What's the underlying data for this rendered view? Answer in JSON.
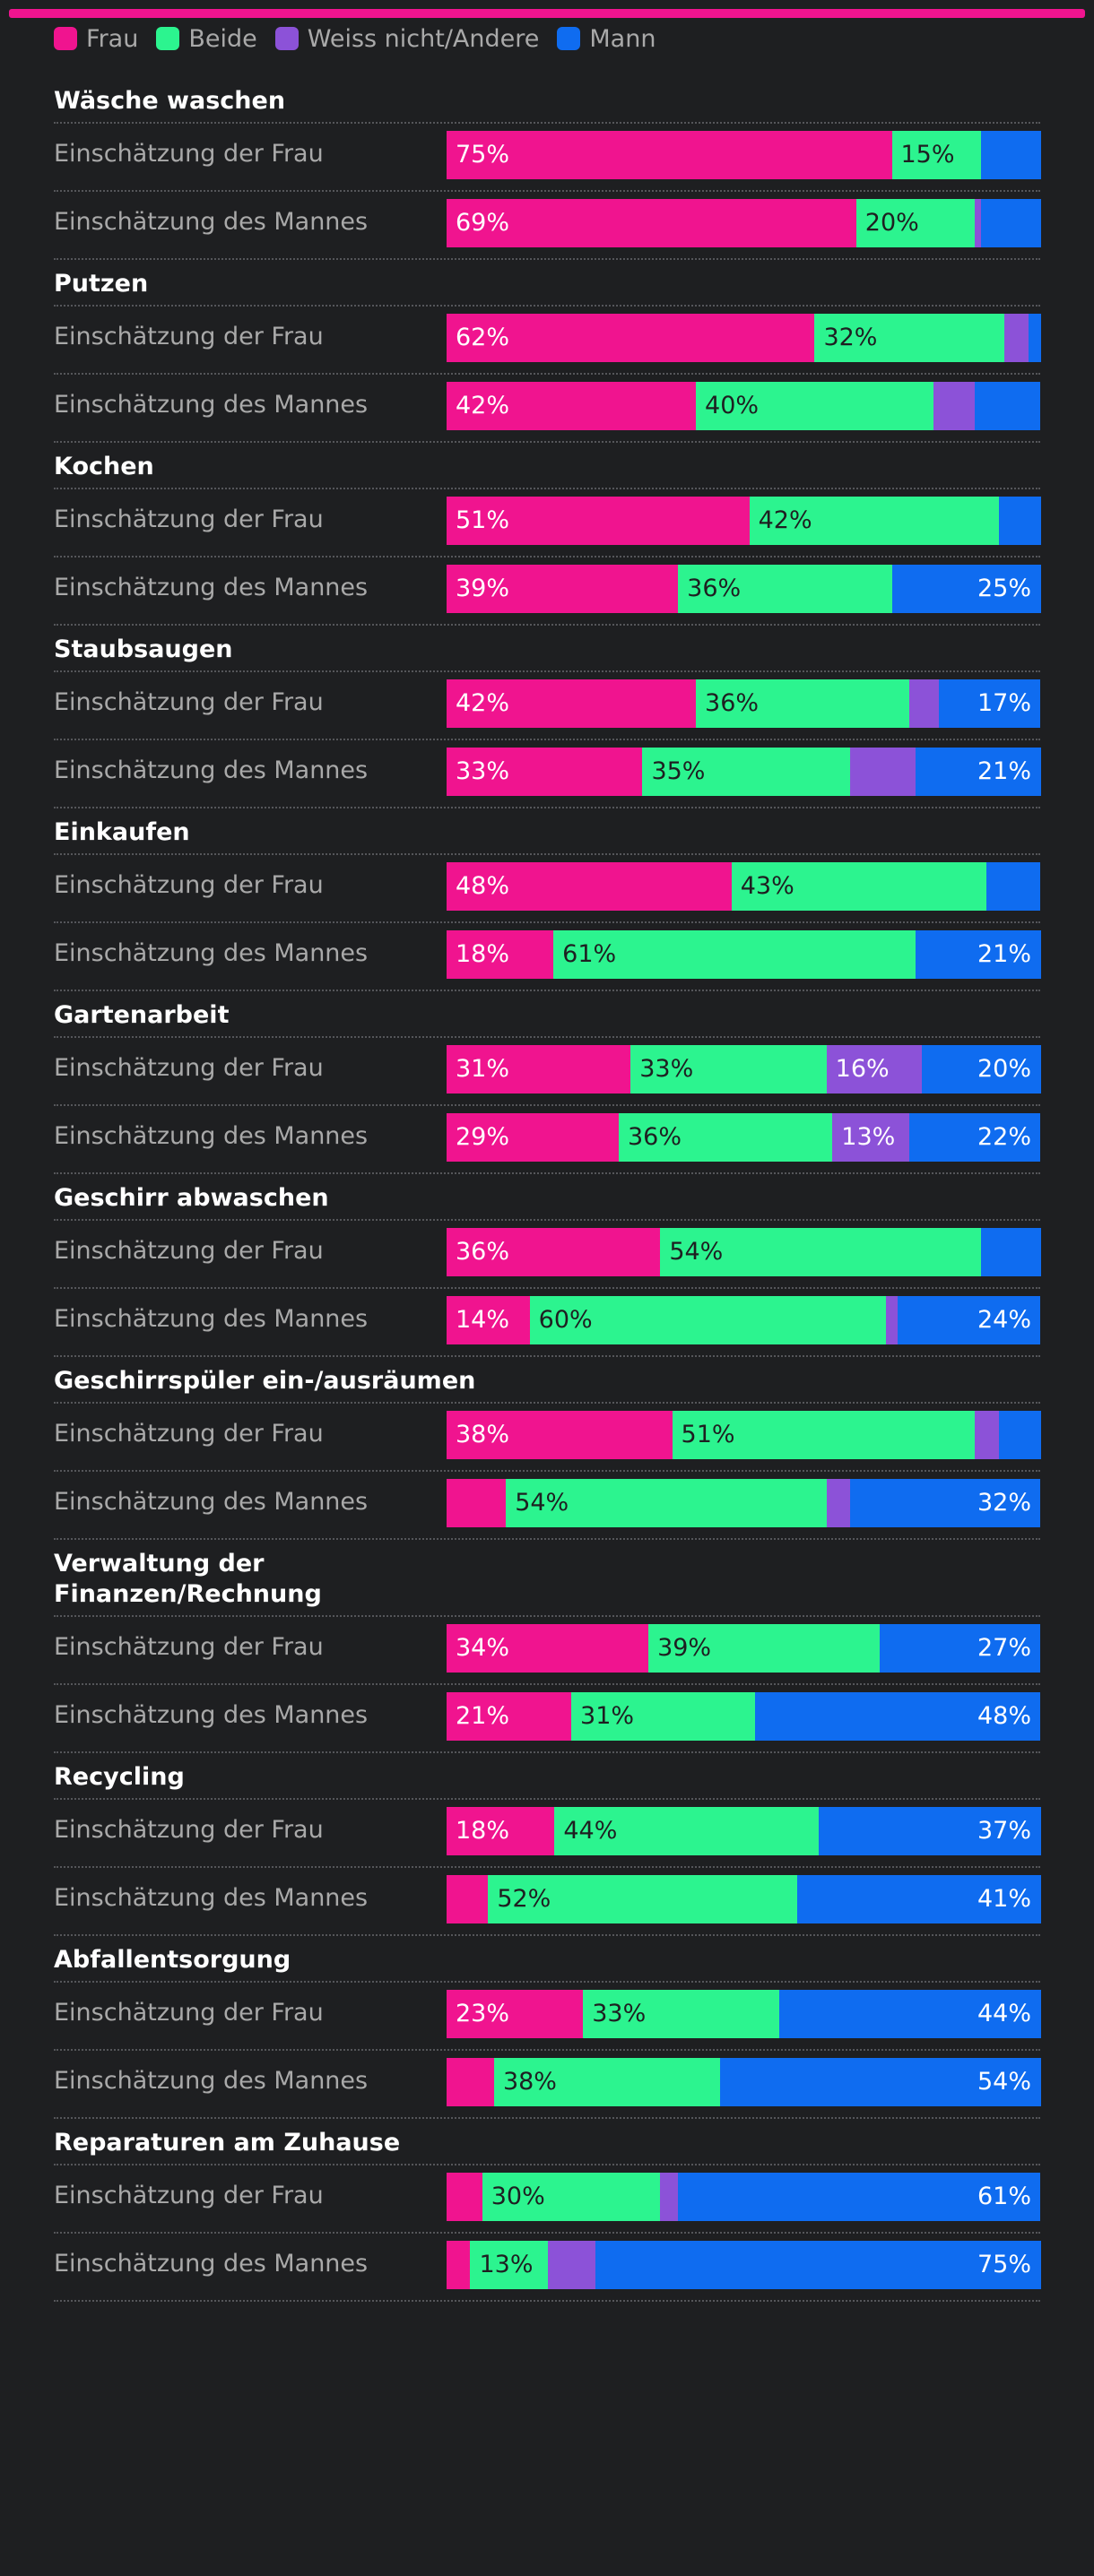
{
  "legend": [
    {
      "key": "frau",
      "label": "Frau",
      "color": "#f0148f"
    },
    {
      "key": "beide",
      "label": "Beide",
      "color": "#2cf48f"
    },
    {
      "key": "weiss",
      "label": "Weiss nicht/Andere",
      "color": "#8c52d8"
    },
    {
      "key": "mann",
      "label": "Mann",
      "color": "#0f6cf0"
    }
  ],
  "chart_data": {
    "type": "bar",
    "orientation": "horizontal",
    "stacked": true,
    "unit": "%",
    "series_order": [
      "Frau",
      "Beide",
      "Weiss nicht/Andere",
      "Mann"
    ],
    "categories": [
      {
        "title": "Wäsche waschen",
        "rows": [
          {
            "label": "Einschätzung der Frau",
            "values": [
              75,
              15,
              0,
              10
            ],
            "labels": [
              "75%",
              "15%",
              "",
              ""
            ]
          },
          {
            "label": "Einschätzung des Mannes",
            "values": [
              69,
              20,
              1,
              10
            ],
            "labels": [
              "69%",
              "20%",
              "",
              ""
            ]
          }
        ]
      },
      {
        "title": "Putzen",
        "rows": [
          {
            "label": "Einschätzung der Frau",
            "values": [
              62,
              32,
              4,
              2
            ],
            "labels": [
              "62%",
              "32%",
              "",
              ""
            ]
          },
          {
            "label": "Einschätzung des Mannes",
            "values": [
              42,
              40,
              7,
              11
            ],
            "labels": [
              "42%",
              "40%",
              "",
              ""
            ]
          }
        ]
      },
      {
        "title": "Kochen",
        "rows": [
          {
            "label": "Einschätzung der Frau",
            "values": [
              51,
              42,
              0,
              7
            ],
            "labels": [
              "51%",
              "42%",
              "",
              ""
            ]
          },
          {
            "label": "Einschätzung des Mannes",
            "values": [
              39,
              36,
              0,
              25
            ],
            "labels": [
              "39%",
              "36%",
              "",
              "25%"
            ]
          }
        ]
      },
      {
        "title": "Staubsaugen",
        "rows": [
          {
            "label": "Einschätzung der Frau",
            "values": [
              42,
              36,
              5,
              17
            ],
            "labels": [
              "42%",
              "36%",
              "",
              "17%"
            ]
          },
          {
            "label": "Einschätzung des Mannes",
            "values": [
              33,
              35,
              11,
              21
            ],
            "labels": [
              "33%",
              "35%",
              "",
              "21%"
            ]
          }
        ]
      },
      {
        "title": "Einkaufen",
        "rows": [
          {
            "label": "Einschätzung der Frau",
            "values": [
              48,
              43,
              0,
              9
            ],
            "labels": [
              "48%",
              "43%",
              "",
              ""
            ]
          },
          {
            "label": "Einschätzung des Mannes",
            "values": [
              18,
              61,
              0,
              21
            ],
            "labels": [
              "18%",
              "61%",
              "",
              "21%"
            ]
          }
        ]
      },
      {
        "title": "Gartenarbeit",
        "rows": [
          {
            "label": "Einschätzung der Frau",
            "values": [
              31,
              33,
              16,
              20
            ],
            "labels": [
              "31%",
              "33%",
              "16%",
              "20%"
            ]
          },
          {
            "label": "Einschätzung des Mannes",
            "values": [
              29,
              36,
              13,
              22
            ],
            "labels": [
              "29%",
              "36%",
              "13%",
              "22%"
            ]
          }
        ]
      },
      {
        "title": "Geschirr abwaschen",
        "rows": [
          {
            "label": "Einschätzung der Frau",
            "values": [
              36,
              54,
              0,
              10
            ],
            "labels": [
              "36%",
              "54%",
              "",
              ""
            ]
          },
          {
            "label": "Einschätzung des Mannes",
            "values": [
              14,
              60,
              2,
              24
            ],
            "labels": [
              "14%",
              "60%",
              "",
              "24%"
            ]
          }
        ]
      },
      {
        "title": "Geschirrspüler ein-/ausräumen",
        "rows": [
          {
            "label": "Einschätzung der Frau",
            "values": [
              38,
              51,
              4,
              7
            ],
            "labels": [
              "38%",
              "51%",
              "",
              ""
            ]
          },
          {
            "label": "Einschätzung des Mannes",
            "values": [
              10,
              54,
              4,
              32
            ],
            "labels": [
              "",
              "54%",
              "",
              "32%"
            ]
          }
        ]
      },
      {
        "title": "Verwaltung der Finanzen/Rechnung",
        "rows": [
          {
            "label": "Einschätzung der Frau",
            "values": [
              34,
              39,
              0,
              27
            ],
            "labels": [
              "34%",
              "39%",
              "",
              "27%"
            ]
          },
          {
            "label": "Einschätzung des Mannes",
            "values": [
              21,
              31,
              0,
              48
            ],
            "labels": [
              "21%",
              "31%",
              "",
              "48%"
            ]
          }
        ]
      },
      {
        "title": "Recycling",
        "rows": [
          {
            "label": "Einschätzung der Frau",
            "values": [
              18,
              44,
              0,
              37
            ],
            "labels": [
              "18%",
              "44%",
              "",
              "37%"
            ]
          },
          {
            "label": "Einschätzung des Mannes",
            "values": [
              7,
              52,
              0,
              41
            ],
            "labels": [
              "",
              "52%",
              "",
              "41%"
            ]
          }
        ]
      },
      {
        "title": "Abfallentsorgung",
        "rows": [
          {
            "label": "Einschätzung der Frau",
            "values": [
              23,
              33,
              0,
              44
            ],
            "labels": [
              "23%",
              "33%",
              "",
              "44%"
            ]
          },
          {
            "label": "Einschätzung des Mannes",
            "values": [
              8,
              38,
              0,
              54
            ],
            "labels": [
              "",
              "38%",
              "",
              "54%"
            ]
          }
        ]
      },
      {
        "title": "Reparaturen am Zuhause",
        "rows": [
          {
            "label": "Einschätzung der Frau",
            "values": [
              6,
              30,
              3,
              61
            ],
            "labels": [
              "",
              "30%",
              "",
              "61%"
            ]
          },
          {
            "label": "Einschätzung des Mannes",
            "values": [
              4,
              13,
              8,
              75
            ],
            "labels": [
              "",
              "13%",
              "",
              "75%"
            ]
          }
        ]
      }
    ]
  }
}
